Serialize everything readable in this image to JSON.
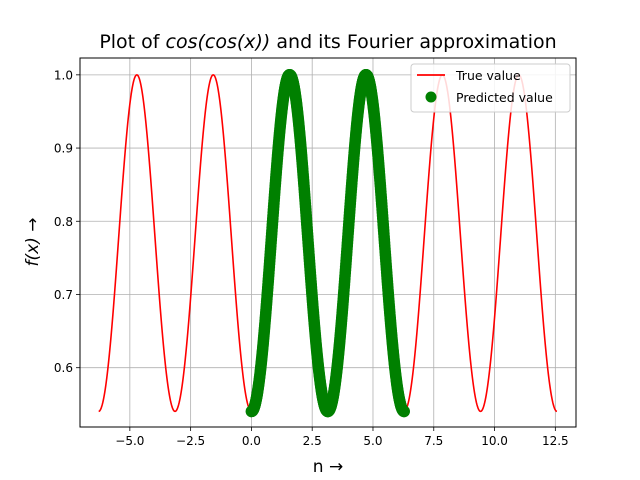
{
  "chart_data": {
    "type": "line",
    "title": {
      "prefix": "Plot of ",
      "math": "cos(cos(x))",
      "suffix": " and its Fourier approximation"
    },
    "xlabel": "n →",
    "ylabel": {
      "math": "f(x)",
      "suffix": " →"
    },
    "xlim": [
      -7.05,
      13.35
    ],
    "ylim": [
      0.519,
      1.023
    ],
    "x_ticks": [
      -5.0,
      -2.5,
      0.0,
      2.5,
      5.0,
      7.5,
      10.0,
      12.5
    ],
    "x_tick_labels": [
      "−5.0",
      "−2.5",
      "0.0",
      "2.5",
      "5.0",
      "7.5",
      "10.0",
      "12.5"
    ],
    "y_ticks": [
      0.6,
      0.7,
      0.8,
      0.9,
      1.0
    ],
    "y_tick_labels": [
      "0.6",
      "0.7",
      "0.8",
      "0.9",
      "1.0"
    ],
    "grid": true,
    "legend_position": "top-right",
    "series": [
      {
        "name": "True value",
        "kind": "line",
        "color": "#ff0000",
        "function": "cos(cos(x))",
        "x_range": [
          -6.283,
          12.566
        ],
        "samples": [
          [
            -6.283,
            0.54
          ],
          [
            -5.498,
            0.651
          ],
          [
            -4.712,
            1.0
          ],
          [
            -3.927,
            0.651
          ],
          [
            -3.142,
            0.54
          ],
          [
            -2.356,
            0.651
          ],
          [
            -1.571,
            1.0
          ],
          [
            -0.785,
            0.651
          ],
          [
            0.0,
            0.54
          ],
          [
            0.785,
            0.651
          ],
          [
            1.571,
            1.0
          ],
          [
            2.356,
            0.651
          ],
          [
            3.142,
            0.54
          ],
          [
            3.927,
            0.651
          ],
          [
            4.712,
            1.0
          ],
          [
            5.498,
            0.651
          ],
          [
            6.283,
            0.54
          ],
          [
            7.069,
            0.651
          ],
          [
            7.854,
            1.0
          ],
          [
            8.639,
            0.651
          ],
          [
            9.425,
            0.54
          ],
          [
            10.21,
            0.651
          ],
          [
            10.996,
            1.0
          ],
          [
            11.781,
            0.651
          ],
          [
            12.566,
            0.54
          ]
        ]
      },
      {
        "name": "Predicted value",
        "kind": "scatter",
        "color": "#008000",
        "function": "cos(cos(x))",
        "x_range": [
          0.0,
          6.283
        ],
        "samples": [
          [
            0.0,
            0.54
          ],
          [
            0.785,
            0.651
          ],
          [
            1.571,
            1.0
          ],
          [
            2.356,
            0.651
          ],
          [
            3.142,
            0.54
          ],
          [
            3.927,
            0.651
          ],
          [
            4.712,
            1.0
          ],
          [
            5.498,
            0.651
          ],
          [
            6.283,
            0.54
          ]
        ]
      }
    ]
  }
}
